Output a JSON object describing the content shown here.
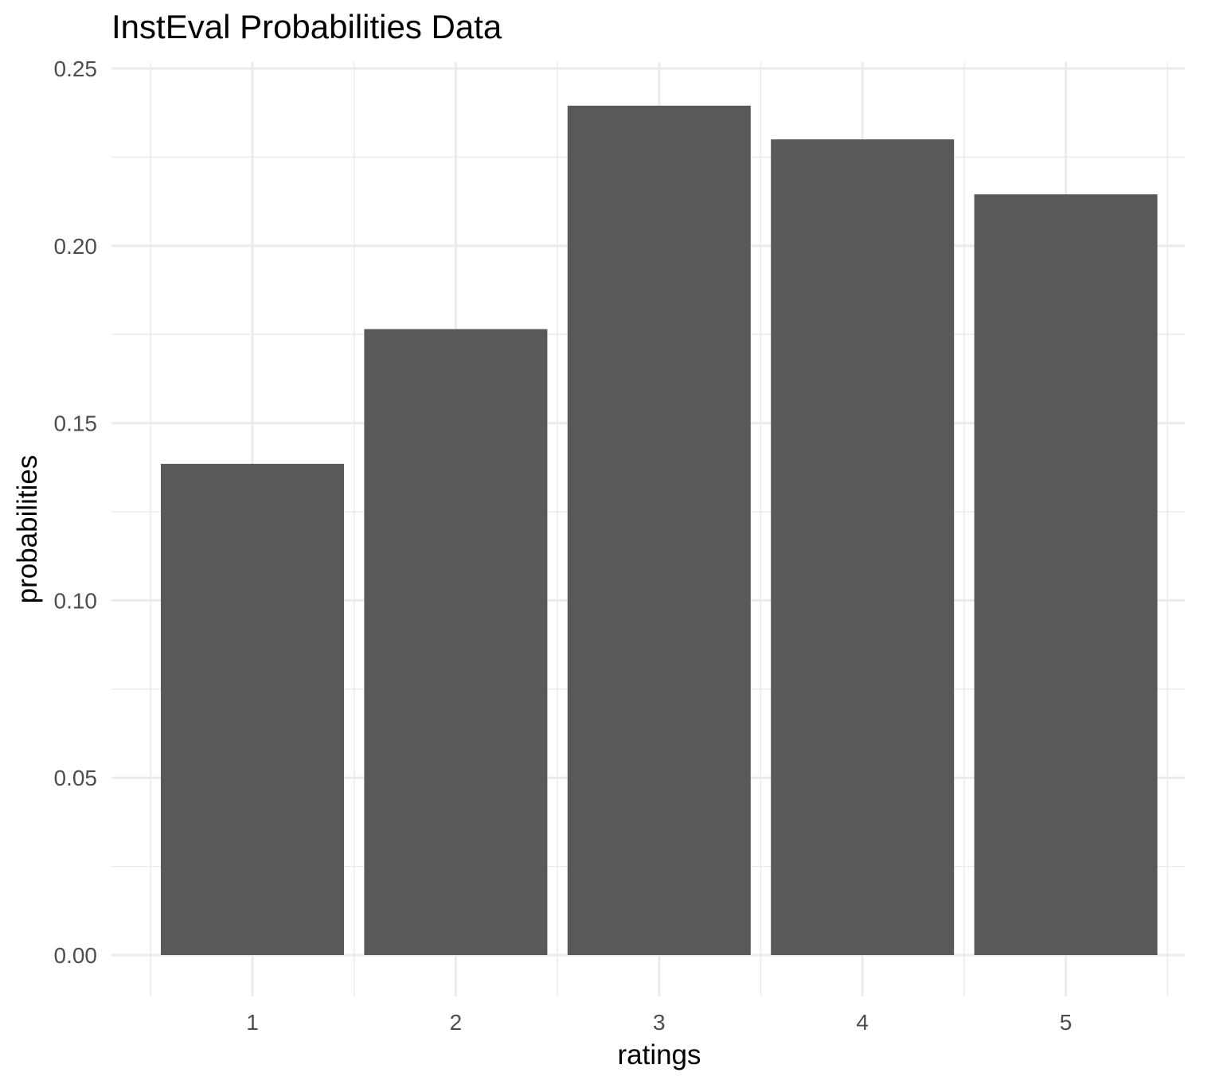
{
  "chart_data": {
    "type": "bar",
    "title": "InstEval Probabilities Data",
    "xlabel": "ratings",
    "ylabel": "probabilities",
    "categories": [
      "1",
      "2",
      "3",
      "4",
      "5"
    ],
    "values": [
      0.1385,
      0.1765,
      0.2395,
      0.23,
      0.2145
    ],
    "ylim": [
      0,
      0.25
    ],
    "yticks": [
      "0.00",
      "0.05",
      "0.10",
      "0.15",
      "0.20",
      "0.25"
    ],
    "ytick_values": [
      0,
      0.05,
      0.1,
      0.15,
      0.2,
      0.25
    ],
    "bar_color": "#595959",
    "grid": true,
    "legend": "none"
  }
}
